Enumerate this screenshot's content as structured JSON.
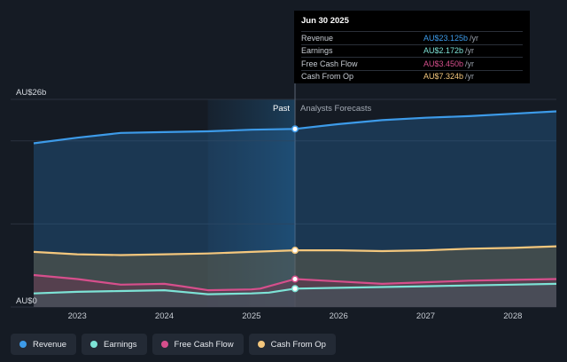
{
  "chart_data": {
    "type": "line",
    "y_top_label": "AU$26b",
    "y_bottom_label": "AU$0",
    "ylim": [
      0,
      26
    ],
    "xlim": [
      2022.5,
      2028.5
    ],
    "x_ticks": [
      {
        "value": 2023,
        "label": "2023"
      },
      {
        "value": 2024,
        "label": "2024"
      },
      {
        "value": 2025,
        "label": "2025"
      },
      {
        "value": 2026,
        "label": "2026"
      },
      {
        "value": 2027,
        "label": "2027"
      },
      {
        "value": 2028,
        "label": "2028"
      }
    ],
    "past_label": "Past",
    "forecast_label": "Analysts Forecasts",
    "divider_x": 2025.5,
    "highlight_start_x": 2024.5,
    "series": [
      {
        "name": "Revenue",
        "color": "#3d9be9",
        "points": [
          [
            2022.5,
            20.5
          ],
          [
            2023.0,
            21.2
          ],
          [
            2023.5,
            21.8
          ],
          [
            2024.0,
            21.9
          ],
          [
            2024.5,
            22.0
          ],
          [
            2025.0,
            22.2
          ],
          [
            2025.5,
            22.3
          ],
          [
            2026.0,
            22.9
          ],
          [
            2026.5,
            23.4
          ],
          [
            2027.0,
            23.7
          ],
          [
            2027.5,
            23.9
          ],
          [
            2028.0,
            24.2
          ],
          [
            2028.5,
            24.5
          ]
        ]
      },
      {
        "name": "Earnings",
        "color": "#7de3d6",
        "points": [
          [
            2022.5,
            1.7
          ],
          [
            2023.0,
            1.9
          ],
          [
            2023.5,
            2.0
          ],
          [
            2024.0,
            2.1
          ],
          [
            2024.3,
            1.8
          ],
          [
            2024.5,
            1.6
          ],
          [
            2025.0,
            1.7
          ],
          [
            2025.2,
            1.8
          ],
          [
            2025.5,
            2.3
          ],
          [
            2026.0,
            2.4
          ],
          [
            2026.5,
            2.5
          ],
          [
            2027.0,
            2.6
          ],
          [
            2027.5,
            2.7
          ],
          [
            2028.0,
            2.8
          ],
          [
            2028.5,
            2.9
          ]
        ]
      },
      {
        "name": "Free Cash Flow",
        "color": "#d64f8c",
        "points": [
          [
            2022.5,
            4.0
          ],
          [
            2023.0,
            3.5
          ],
          [
            2023.5,
            2.8
          ],
          [
            2024.0,
            2.9
          ],
          [
            2024.2,
            2.6
          ],
          [
            2024.5,
            2.1
          ],
          [
            2025.0,
            2.2
          ],
          [
            2025.1,
            2.3
          ],
          [
            2025.5,
            3.5
          ],
          [
            2026.0,
            3.2
          ],
          [
            2026.5,
            2.9
          ],
          [
            2027.0,
            3.1
          ],
          [
            2027.5,
            3.3
          ],
          [
            2028.0,
            3.4
          ],
          [
            2028.5,
            3.5
          ]
        ]
      },
      {
        "name": "Cash From Op",
        "color": "#f4c77d",
        "points": [
          [
            2022.5,
            6.9
          ],
          [
            2023.0,
            6.6
          ],
          [
            2023.5,
            6.5
          ],
          [
            2024.0,
            6.6
          ],
          [
            2024.5,
            6.7
          ],
          [
            2025.0,
            6.9
          ],
          [
            2025.5,
            7.1
          ],
          [
            2026.0,
            7.1
          ],
          [
            2026.5,
            7.0
          ],
          [
            2027.0,
            7.1
          ],
          [
            2027.5,
            7.3
          ],
          [
            2028.0,
            7.4
          ],
          [
            2028.5,
            7.6
          ]
        ]
      }
    ]
  },
  "tooltip": {
    "date": "Jun 30 2025",
    "rows": [
      {
        "label": "Revenue",
        "value": "AU$23.125b",
        "unit": "/yr",
        "color": "#3d9be9"
      },
      {
        "label": "Earnings",
        "value": "AU$2.172b",
        "unit": "/yr",
        "color": "#7de3d6"
      },
      {
        "label": "Free Cash Flow",
        "value": "AU$3.450b",
        "unit": "/yr",
        "color": "#d64f8c"
      },
      {
        "label": "Cash From Op",
        "value": "AU$7.324b",
        "unit": "/yr",
        "color": "#f4c77d"
      }
    ]
  },
  "legend": [
    {
      "label": "Revenue",
      "color": "#3d9be9"
    },
    {
      "label": "Earnings",
      "color": "#7de3d6"
    },
    {
      "label": "Free Cash Flow",
      "color": "#d64f8c"
    },
    {
      "label": "Cash From Op",
      "color": "#f4c77d"
    }
  ]
}
